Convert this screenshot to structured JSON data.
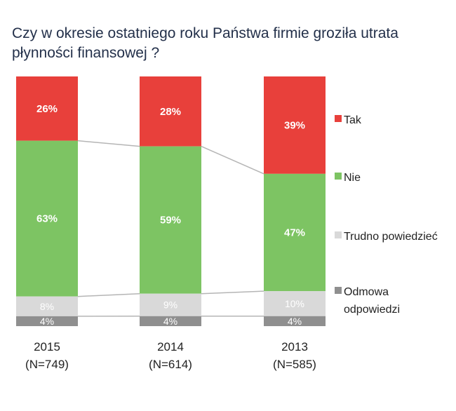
{
  "chart_data": {
    "type": "bar",
    "stacked": true,
    "title": "Czy w okresie ostatniego roku Państwa firmie groziła utrata płynności finansowej ?",
    "categories": [
      "2015",
      "2014",
      "2013"
    ],
    "category_sublabels": [
      "(N=749)",
      "(N=614)",
      "(N=585)"
    ],
    "series": [
      {
        "name": "Tak",
        "color": "#e8403b",
        "values": [
          26,
          28,
          39
        ]
      },
      {
        "name": "Nie",
        "color": "#7dc463",
        "values": [
          63,
          59,
          47
        ]
      },
      {
        "name": "Trudno powiedzieć",
        "color": "#d9d9d9",
        "values": [
          8,
          9,
          10
        ]
      },
      {
        "name": "Odmowa odpowiedzi",
        "color": "#8f8f8f",
        "values": [
          4,
          4,
          4
        ]
      }
    ],
    "value_suffix": "%",
    "legend_position": "right",
    "grid": false
  }
}
